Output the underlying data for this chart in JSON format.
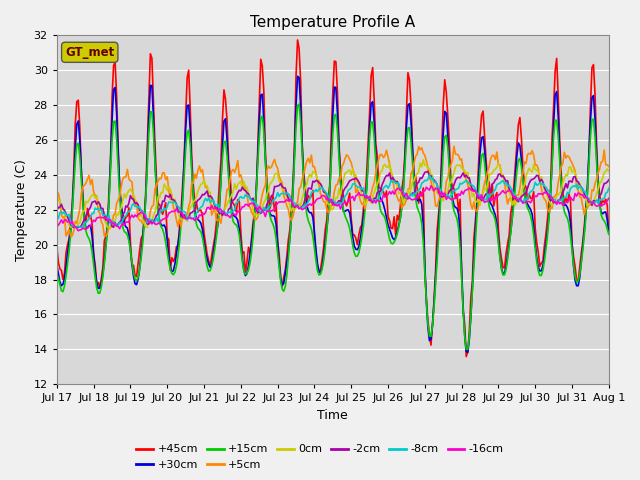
{
  "title": "Temperature Profile A",
  "xlabel": "Time",
  "ylabel": "Temperature (C)",
  "ylim": [
    12,
    32
  ],
  "xlim": [
    0,
    360
  ],
  "fig_bg_color": "#f0f0f0",
  "plot_bg_color": "#d8d8d8",
  "series": {
    "+45cm": {
      "color": "#ff0000",
      "lw": 1.2
    },
    "+30cm": {
      "color": "#0000dd",
      "lw": 1.2
    },
    "+15cm": {
      "color": "#00cc00",
      "lw": 1.2
    },
    "+5cm": {
      "color": "#ff8800",
      "lw": 1.2
    },
    "0cm": {
      "color": "#cccc00",
      "lw": 1.2
    },
    "-2cm": {
      "color": "#aa00aa",
      "lw": 1.2
    },
    "-8cm": {
      "color": "#00cccc",
      "lw": 1.2
    },
    "-16cm": {
      "color": "#ff00cc",
      "lw": 1.2
    }
  },
  "xtick_labels": [
    "Jul 17",
    "Jul 18",
    "Jul 19",
    "Jul 20",
    "Jul 21",
    "Jul 22",
    "Jul 23",
    "Jul 24",
    "Jul 25",
    "Jul 26",
    "Jul 27",
    "Jul 28",
    "Jul 29",
    "Jul 30",
    "Jul 31",
    "Aug 1"
  ],
  "xtick_positions": [
    0,
    24,
    48,
    72,
    96,
    120,
    144,
    168,
    192,
    216,
    240,
    264,
    288,
    312,
    336,
    360
  ],
  "legend_label": "GT_met",
  "legend_box_facecolor": "#cccc00",
  "legend_text_color": "#660000",
  "grid_color": "#ffffff",
  "ytick_step": 2,
  "ytick_min": 12,
  "ytick_max": 32
}
